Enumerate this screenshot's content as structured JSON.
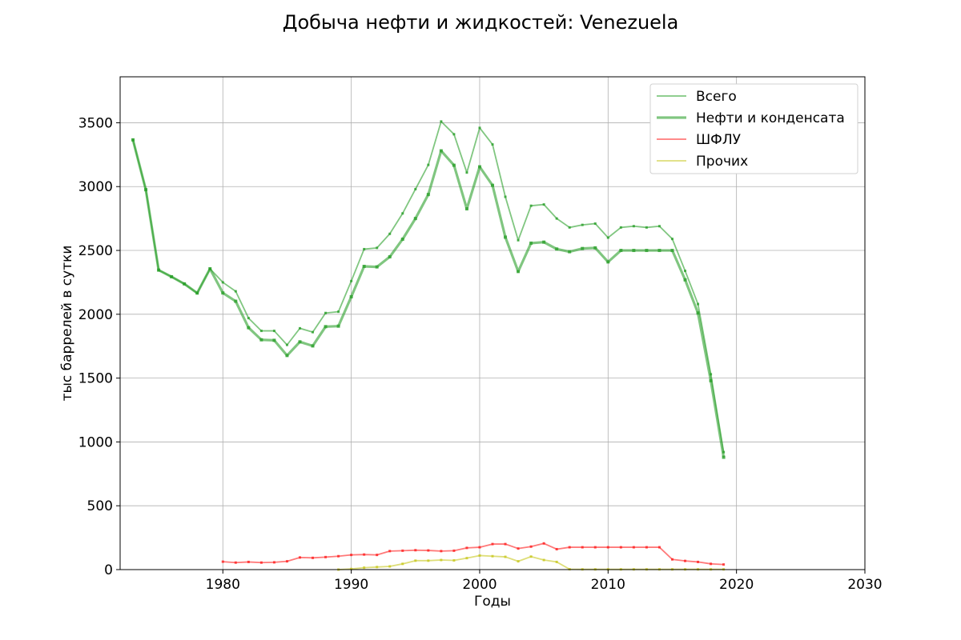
{
  "chart_data": {
    "type": "line",
    "title": "Добыча нефти и жидкостей: Venezuela",
    "xlabel": "Годы",
    "ylabel": "тыс баррелей в сутки",
    "xlim": [
      1972,
      2030
    ],
    "ylim": [
      0,
      3860
    ],
    "xticks": [
      1980,
      1990,
      2000,
      2010,
      2020,
      2030
    ],
    "yticks": [
      0,
      500,
      1000,
      1500,
      2000,
      2500,
      3000,
      3500
    ],
    "grid": true,
    "legend_position": "top-right",
    "series": [
      {
        "name": "Всего",
        "color": "#2ca02c",
        "style": "thin",
        "x": [
          1973,
          1974,
          1975,
          1976,
          1977,
          1978,
          1979,
          1980,
          1981,
          1982,
          1983,
          1984,
          1985,
          1986,
          1987,
          1988,
          1989,
          1990,
          1991,
          1992,
          1993,
          1994,
          1995,
          1996,
          1997,
          1998,
          1999,
          2000,
          2001,
          2002,
          2003,
          2004,
          2005,
          2006,
          2007,
          2008,
          2009,
          2010,
          2011,
          2012,
          2013,
          2014,
          2015,
          2016,
          2017,
          2018,
          2019
        ],
        "y": [
          3366,
          2976,
          2346,
          2294,
          2238,
          2166,
          2356,
          2250,
          2180,
          1970,
          1870,
          1870,
          1760,
          1890,
          1860,
          2010,
          2020,
          2260,
          2510,
          2520,
          2630,
          2790,
          2980,
          3170,
          3510,
          3410,
          3110,
          3460,
          3330,
          2920,
          2580,
          2850,
          2860,
          2750,
          2680,
          2700,
          2710,
          2600,
          2680,
          2690,
          2680,
          2690,
          2590,
          2340,
          2080,
          1530,
          920
        ]
      },
      {
        "name": "Нефти и конденсата",
        "color": "#2ca02c",
        "style": "thick",
        "x": [
          1973,
          1974,
          1975,
          1976,
          1977,
          1978,
          1979,
          1980,
          1981,
          1982,
          1983,
          1984,
          1985,
          1986,
          1987,
          1988,
          1989,
          1990,
          1991,
          1992,
          1993,
          1994,
          1995,
          1996,
          1997,
          1998,
          1999,
          2000,
          2001,
          2002,
          2003,
          2004,
          2005,
          2006,
          2007,
          2008,
          2009,
          2010,
          2011,
          2012,
          2013,
          2014,
          2015,
          2016,
          2017,
          2018,
          2019
        ],
        "y": [
          3366,
          2976,
          2346,
          2294,
          2238,
          2166,
          2356,
          2167,
          2102,
          1895,
          1800,
          1796,
          1677,
          1784,
          1752,
          1903,
          1907,
          2137,
          2375,
          2371,
          2450,
          2588,
          2750,
          2938,
          3280,
          3167,
          2826,
          3155,
          3010,
          2604,
          2335,
          2557,
          2565,
          2511,
          2490,
          2515,
          2520,
          2410,
          2500,
          2500,
          2500,
          2500,
          2500,
          2270,
          2010,
          1480,
          880
        ]
      },
      {
        "name": "ШФЛУ",
        "color": "#ff2020",
        "style": "thin",
        "x": [
          1980,
          1981,
          1982,
          1983,
          1984,
          1985,
          1986,
          1987,
          1988,
          1989,
          1990,
          1991,
          1992,
          1993,
          1994,
          1995,
          1996,
          1997,
          1998,
          1999,
          2000,
          2001,
          2002,
          2003,
          2004,
          2005,
          2006,
          2007,
          2008,
          2009,
          2010,
          2011,
          2012,
          2013,
          2014,
          2015,
          2016,
          2017,
          2018,
          2019
        ],
        "y": [
          62,
          55,
          60,
          55,
          57,
          65,
          95,
          92,
          98,
          105,
          115,
          118,
          115,
          145,
          148,
          152,
          150,
          145,
          148,
          170,
          175,
          200,
          200,
          165,
          180,
          205,
          160,
          175,
          175,
          175,
          175,
          175,
          175,
          175,
          175,
          80,
          68,
          60,
          45,
          40
        ]
      },
      {
        "name": "Прочих",
        "color": "#c8c820",
        "style": "thin",
        "x": [
          1989,
          1990,
          1991,
          1992,
          1993,
          1994,
          1995,
          1996,
          1997,
          1998,
          1999,
          2000,
          2001,
          2002,
          2003,
          2004,
          2005,
          2006,
          2007,
          2008,
          2009,
          2010,
          2011,
          2012,
          2013,
          2014,
          2015,
          2016,
          2017,
          2018,
          2019
        ],
        "y": [
          0,
          5,
          15,
          20,
          25,
          45,
          70,
          70,
          75,
          72,
          90,
          110,
          105,
          100,
          65,
          102,
          75,
          60,
          3,
          2,
          2,
          2,
          2,
          2,
          2,
          2,
          2,
          2,
          2,
          2,
          2
        ]
      }
    ]
  }
}
